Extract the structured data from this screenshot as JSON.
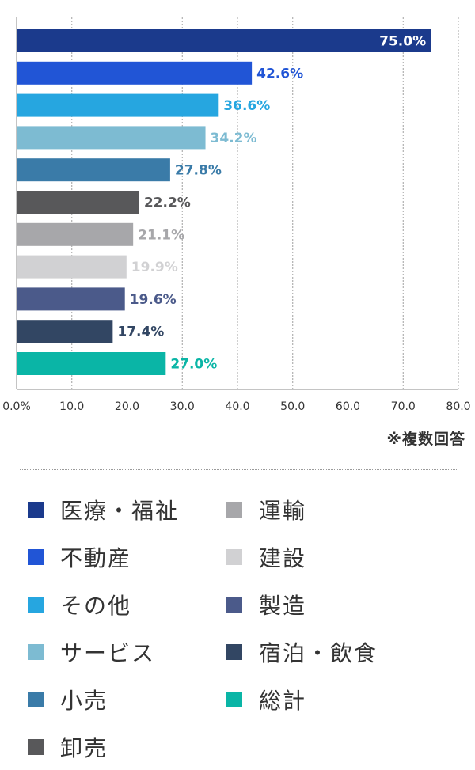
{
  "chart_data": {
    "type": "bar",
    "orientation": "horizontal",
    "categories": [
      "医療・福祉",
      "不動産",
      "その他",
      "サービス",
      "小売",
      "卸売",
      "運輸",
      "建設",
      "製造",
      "宿泊・飲食",
      "総計"
    ],
    "values": [
      75.0,
      42.6,
      36.6,
      34.2,
      27.8,
      22.2,
      21.1,
      19.9,
      19.6,
      17.4,
      27.0
    ],
    "value_labels": [
      "75.0%",
      "42.6%",
      "36.6%",
      "34.2%",
      "27.8%",
      "22.2%",
      "21.1%",
      "19.9%",
      "19.6%",
      "17.4%",
      "27.0%"
    ],
    "colors": [
      "#1b3a8c",
      "#2155d6",
      "#26a6e0",
      "#7dbbd2",
      "#3a7ba8",
      "#58585a",
      "#a7a7aa",
      "#d1d1d3",
      "#4b5a8a",
      "#324663",
      "#0ab5a6"
    ],
    "xlim": [
      0,
      80
    ],
    "x_ticks": [
      0,
      10,
      20,
      30,
      40,
      50,
      60,
      70,
      80
    ],
    "x_tick_labels": [
      "0.0%",
      "10.0",
      "20.0",
      "30.0",
      "40.0",
      "50.0",
      "60.0",
      "70.0",
      "80.0"
    ],
    "grid": true,
    "legend_position": "bottom"
  },
  "note": "※複数回答"
}
